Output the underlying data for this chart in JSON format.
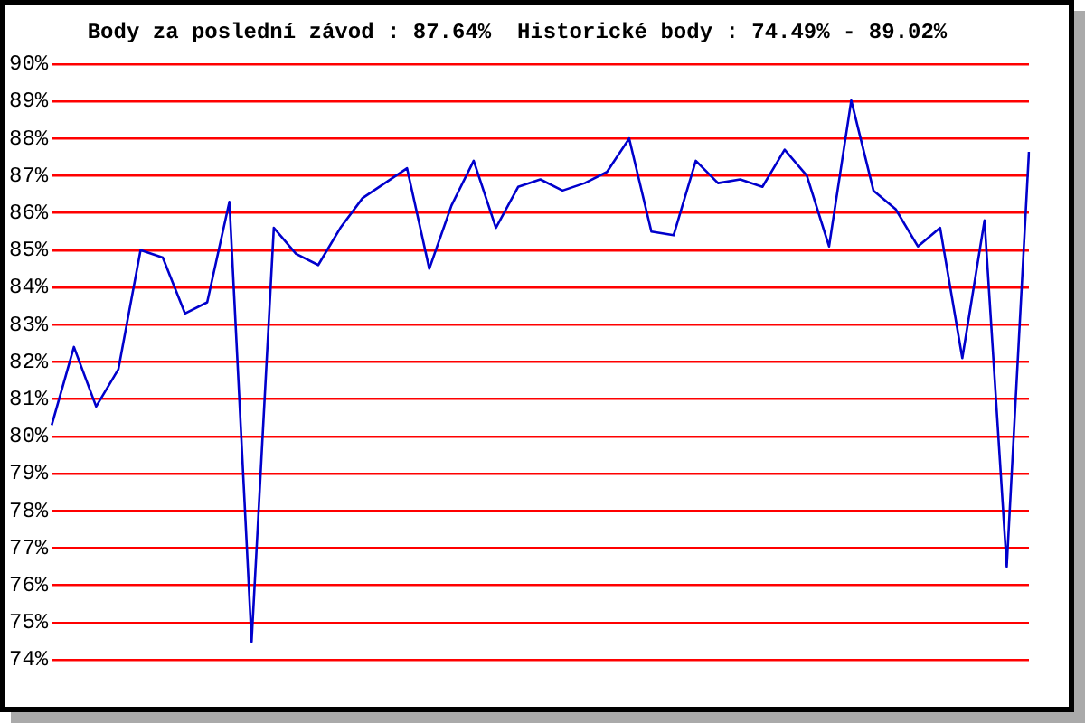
{
  "chart_data": {
    "type": "line",
    "title": "Body za poslední závod : 87.64%  Historické body : 74.49% - 89.02%",
    "categories": [
      null,
      null,
      null,
      null,
      null,
      null,
      null,
      null,
      null,
      null,
      null,
      null,
      null,
      null,
      null,
      null,
      null,
      null,
      null,
      null,
      null,
      null,
      null,
      null,
      null,
      null,
      null,
      null,
      null,
      null,
      null,
      null,
      null,
      null,
      null,
      null,
      null,
      null,
      null,
      null,
      null,
      null,
      null,
      null,
      null
    ],
    "series": [
      {
        "color": "#0000cc",
        "values": [
          80.3,
          82.4,
          80.8,
          81.8,
          85.0,
          84.8,
          83.3,
          83.6,
          86.3,
          74.49,
          85.6,
          84.9,
          84.6,
          85.6,
          86.4,
          86.8,
          87.2,
          84.5,
          86.2,
          87.4,
          85.6,
          86.7,
          86.9,
          86.6,
          86.8,
          87.1,
          88.0,
          85.5,
          85.4,
          87.4,
          86.8,
          86.9,
          86.7,
          87.7,
          87.0,
          85.1,
          89.02,
          86.6,
          86.1,
          85.1,
          85.6,
          82.1,
          85.8,
          76.5,
          87.64
        ]
      }
    ],
    "ylim": [
      74,
      90
    ],
    "yticks": [
      {
        "value": 74,
        "label": "74%"
      },
      {
        "value": 75,
        "label": "75%"
      },
      {
        "value": 76,
        "label": "76%"
      },
      {
        "value": 77,
        "label": "77%"
      },
      {
        "value": 78,
        "label": "78%"
      },
      {
        "value": 79,
        "label": "79%"
      },
      {
        "value": 80,
        "label": "80%"
      },
      {
        "value": 81,
        "label": "81%"
      },
      {
        "value": 82,
        "label": "82%"
      },
      {
        "value": 83,
        "label": "83%"
      },
      {
        "value": 84,
        "label": "84%"
      },
      {
        "value": 85,
        "label": "85%"
      },
      {
        "value": 86,
        "label": "86%"
      },
      {
        "value": 87,
        "label": "87%"
      },
      {
        "value": 88,
        "label": "88%"
      },
      {
        "value": 89,
        "label": "89%"
      },
      {
        "value": 90,
        "label": "90%"
      }
    ],
    "grid": "y",
    "tick_labels": "y",
    "line_style": "solid"
  }
}
